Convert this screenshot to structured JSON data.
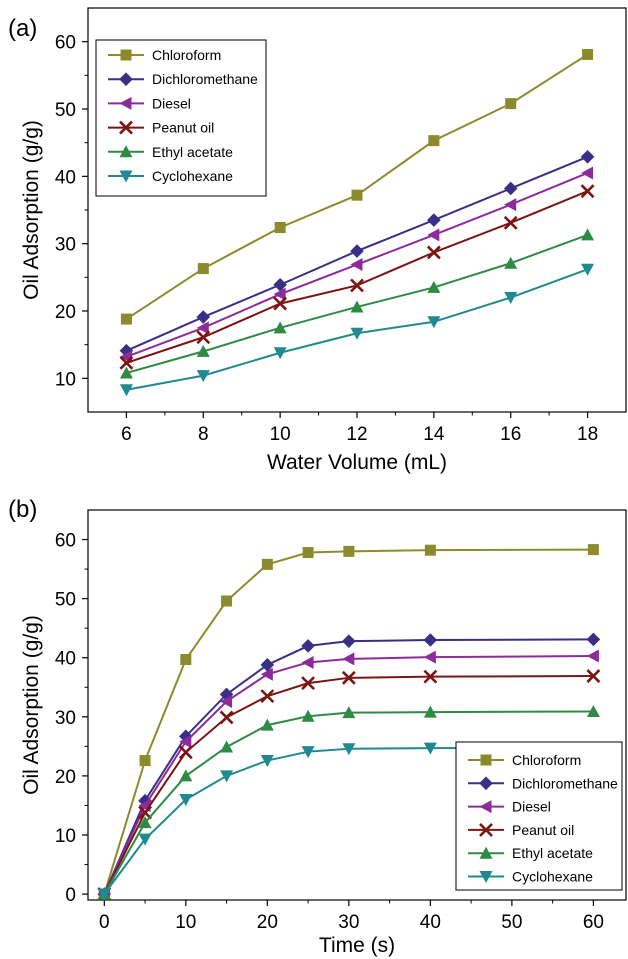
{
  "chart_data": [
    {
      "type": "line",
      "panel_label": "(a)",
      "xlabel": "Water Volume (mL)",
      "ylabel": "Oil Adsorption (g/g)",
      "xlim": [
        5,
        19
      ],
      "ylim": [
        5,
        65
      ],
      "xticks": [
        6,
        8,
        10,
        12,
        14,
        16,
        18
      ],
      "yticks": [
        10,
        20,
        30,
        40,
        50,
        60
      ],
      "legend_position": "top-left",
      "x": [
        6,
        8,
        10,
        12,
        14,
        16,
        18
      ],
      "series": [
        {
          "name": "Chloroform",
          "color": "#8b8b2e",
          "marker": "square",
          "values": [
            18.8,
            26.3,
            32.4,
            37.2,
            45.3,
            50.8,
            58.1
          ]
        },
        {
          "name": "Dichloromethane",
          "color": "#3a2f86",
          "marker": "diamond",
          "values": [
            14.1,
            19.1,
            23.9,
            28.9,
            33.5,
            38.2,
            42.9
          ]
        },
        {
          "name": "Diesel",
          "color": "#8e2b9a",
          "marker": "triangle-left",
          "values": [
            13.2,
            17.5,
            22.5,
            26.9,
            31.3,
            35.8,
            40.5
          ]
        },
        {
          "name": "Peanut oil",
          "color": "#7d1414",
          "marker": "x",
          "values": [
            12.3,
            16.1,
            21.1,
            23.8,
            28.7,
            33.1,
            37.8
          ]
        },
        {
          "name": "Ethyl acetate",
          "color": "#2e8b45",
          "marker": "triangle-up",
          "values": [
            10.8,
            14.0,
            17.5,
            20.6,
            23.5,
            27.1,
            31.3
          ]
        },
        {
          "name": "Cyclohexane",
          "color": "#1f8a91",
          "marker": "triangle-down",
          "values": [
            8.3,
            10.4,
            13.8,
            16.7,
            18.4,
            22.0,
            26.2
          ]
        }
      ]
    },
    {
      "type": "line",
      "panel_label": "(b)",
      "xlabel": "Time (s)",
      "ylabel": "Oil Adsorption (g/g)",
      "xlim": [
        -2,
        64
      ],
      "ylim": [
        -1,
        65
      ],
      "xticks": [
        0,
        10,
        20,
        30,
        40,
        50,
        60
      ],
      "yticks": [
        0,
        10,
        20,
        30,
        40,
        50,
        60
      ],
      "legend_position": "bottom-right",
      "x": [
        0,
        5,
        10,
        15,
        20,
        25,
        30,
        40,
        60
      ],
      "series": [
        {
          "name": "Chloroform",
          "color": "#8b8b2e",
          "marker": "square",
          "values": [
            0,
            22.6,
            39.7,
            49.6,
            55.8,
            57.8,
            58.0,
            58.2,
            58.3
          ]
        },
        {
          "name": "Dichloromethane",
          "color": "#3a2f86",
          "marker": "diamond",
          "values": [
            0,
            15.8,
            26.7,
            33.8,
            38.8,
            42.0,
            42.8,
            43.0,
            43.1
          ]
        },
        {
          "name": "Diesel",
          "color": "#8e2b9a",
          "marker": "triangle-left",
          "values": [
            0,
            15.0,
            25.8,
            32.6,
            37.2,
            39.2,
            39.8,
            40.1,
            40.3
          ]
        },
        {
          "name": "Peanut oil",
          "color": "#7d1414",
          "marker": "x",
          "values": [
            0,
            13.8,
            24.0,
            29.9,
            33.5,
            35.7,
            36.6,
            36.8,
            36.9
          ]
        },
        {
          "name": "Ethyl acetate",
          "color": "#2e8b45",
          "marker": "triangle-up",
          "values": [
            0,
            12.1,
            20.0,
            24.9,
            28.6,
            30.1,
            30.7,
            30.8,
            30.9
          ]
        },
        {
          "name": "Cyclohexane",
          "color": "#1f8a91",
          "marker": "triangle-down",
          "values": [
            0,
            9.3,
            16.0,
            20.0,
            22.6,
            24.1,
            24.6,
            24.7,
            24.8
          ]
        }
      ]
    }
  ]
}
